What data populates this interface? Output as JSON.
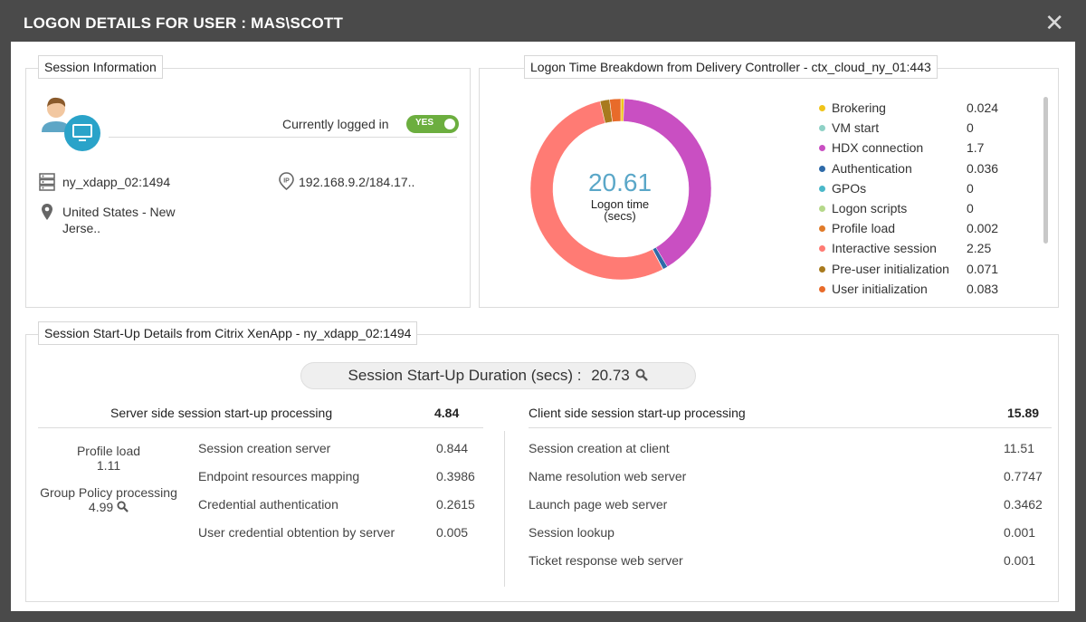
{
  "dialog": {
    "title": "LOGON DETAILS FOR USER : MAS\\SCOTT",
    "close_glyph": "✕"
  },
  "session_info": {
    "heading": "Session Information",
    "logged_in_label": "Currently logged in",
    "toggle_label": "YES",
    "server": "ny_xdapp_02:1494",
    "ip": "192.168.9.2/184.17..",
    "location_line1": "United States - New",
    "location_line2": "Jerse..",
    "icons": {
      "server": "server-icon",
      "ip": "ip-pin-icon",
      "location": "location-pin-icon",
      "user": "user-desktop-icon"
    }
  },
  "logon_breakdown": {
    "heading": "Logon Time Breakdown from Delivery Controller - ctx_cloud_ny_01:443",
    "center_value": "20.61",
    "center_label_line1": "Logon time",
    "center_label_line2": "(secs)"
  },
  "chart_data": {
    "type": "pie",
    "categories": [
      "Brokering",
      "VM start",
      "HDX connection",
      "Authentication",
      "GPOs",
      "Logon scripts",
      "Profile load",
      "Interactive session",
      "Pre-user initialization",
      "User initialization"
    ],
    "series": [
      {
        "values": [
          0.024,
          0,
          1.7,
          0.036,
          0,
          0,
          0.002,
          2.25,
          0.071,
          0.083
        ]
      }
    ],
    "value_labels": [
      "0.024",
      "0",
      "1.7",
      "0.036",
      "0",
      "0",
      "0.002",
      "2.25",
      "0.071",
      "0.083"
    ],
    "colors": [
      "#f0c419",
      "#8fd1c6",
      "#c94fc2",
      "#2e6aa8",
      "#4bb8c9",
      "#b5d88a",
      "#e07b2a",
      "#ff7b74",
      "#a87a1e",
      "#e86b2a"
    ],
    "donut": true,
    "legend": "right"
  },
  "startup": {
    "heading": "Session Start-Up Details from Citrix XenApp - ny_xdapp_02:1494",
    "duration_label": "Session Start-Up Duration (secs) :",
    "duration_value": "20.73",
    "server": {
      "title": "Server side session start-up processing",
      "total": "4.84",
      "profile_load_label": "Profile load",
      "profile_load_value": "1.11",
      "group_policy_label": "Group Policy processing",
      "group_policy_value": "4.99",
      "rows": [
        {
          "label": "Session creation server",
          "value": "0.844"
        },
        {
          "label": "Endpoint resources mapping",
          "value": "0.3986"
        },
        {
          "label": "Credential authentication",
          "value": "0.2615"
        },
        {
          "label": "User credential obtention by server",
          "value": "0.005"
        }
      ]
    },
    "client": {
      "title": "Client side session start-up processing",
      "total": "15.89",
      "rows": [
        {
          "label": "Session creation at client",
          "value": "11.51"
        },
        {
          "label": "Name resolution web server",
          "value": "0.7747"
        },
        {
          "label": "Launch page web server",
          "value": "0.3462"
        },
        {
          "label": "Session lookup",
          "value": "0.001"
        },
        {
          "label": "Ticket response web server",
          "value": "0.001"
        }
      ]
    }
  }
}
